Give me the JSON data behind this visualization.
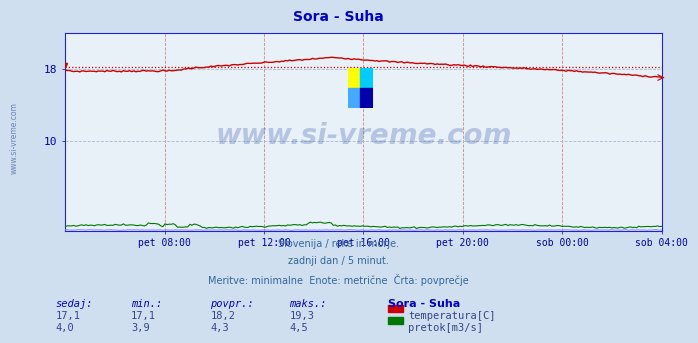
{
  "title": "Sora - Suha",
  "bg_color": "#d0dff0",
  "plot_bg_color": "#e8f0f8",
  "grid_color_h": "#c0c8d0",
  "grid_color_v": "#d09090",
  "title_color": "#0000cc",
  "tick_color": "#0000aa",
  "watermark_text": "www.si-vreme.com",
  "watermark_color": "#3355aa",
  "subtitle_lines": [
    "Slovenija / reke in morje.",
    "zadnji dan / 5 minut.",
    "Meritve: minimalne  Enote: metrične  Črta: povprečje"
  ],
  "subtitle_color": "#336699",
  "xticklabels": [
    "pet 08:00",
    "pet 12:00",
    "pet 16:00",
    "pet 20:00",
    "sob 00:00",
    "sob 04:00"
  ],
  "xtick_fracs": [
    0.1667,
    0.3333,
    0.5,
    0.6667,
    0.8333,
    1.0
  ],
  "ylim": [
    0,
    22
  ],
  "ytick_vals": [
    10,
    18
  ],
  "temp_avg": 18.2,
  "temp_min": 17.1,
  "temp_max": 19.3,
  "temp_sedaj": 17.1,
  "flow_avg": 4.3,
  "flow_min": 3.9,
  "flow_max": 4.5,
  "flow_sedaj": 4.0,
  "temp_color": "#cc0000",
  "flow_color": "#007700",
  "height_color": "#8888ff",
  "border_color": "#2222cc",
  "table_header_color": "#0000cc",
  "table_value_color": "#334488",
  "legend_title": "Sora - Suha",
  "legend_title_color": "#0000cc",
  "legend_items": [
    "temperatura[C]",
    "pretok[m3/s]"
  ],
  "legend_colors": [
    "#cc0000",
    "#007700"
  ]
}
